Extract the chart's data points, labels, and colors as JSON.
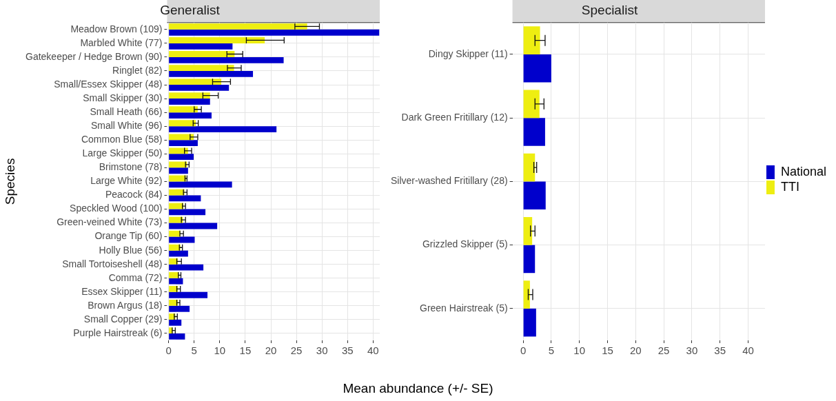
{
  "chart_data": [
    {
      "type": "bar",
      "orientation": "horizontal",
      "title": "Generalist",
      "xlabel": "Mean abundance (+/- SE)",
      "ylabel": "Species",
      "categories": [
        "Meadow Brown (109)",
        "Marbled White (77)",
        "Gatekeeper / Hedge Brown (90)",
        "Ringlet (82)",
        "Small/Essex Skipper (48)",
        "Small Skipper (30)",
        "Small Heath (66)",
        "Small White (96)",
        "Common Blue (58)",
        "Large Skipper (50)",
        "Brimstone (78)",
        "Large White (92)",
        "Peacock (84)",
        "Speckled Wood (100)",
        "Green-veined White (73)",
        "Orange Tip (60)",
        "Holly Blue (56)",
        "Small Tortoiseshell (48)",
        "Comma (72)",
        "Essex Skipper (11)",
        "Brown Argus (18)",
        "Small Copper (29)",
        "Purple Hairstreak (6)"
      ],
      "series": [
        {
          "color": "#0000cc",
          "values": [
            41.2,
            12.5,
            22.5,
            16.5,
            11.8,
            8.1,
            8.4,
            21.1,
            5.7,
            4.9,
            3.8,
            12.4,
            6.3,
            7.2,
            9.5,
            5.1,
            3.8,
            6.8,
            2.8,
            7.6,
            4.1,
            2.5,
            3.2
          ]
        },
        {
          "color": "#eeee11",
          "values": [
            27.1,
            18.8,
            12.9,
            12.8,
            10.3,
            8.1,
            5.7,
            5.3,
            4.9,
            3.8,
            3.6,
            3.4,
            3.1,
            2.9,
            2.8,
            2.3,
            2.3,
            1.8,
            2.0,
            1.8,
            1.8,
            1.3,
            0.8
          ],
          "errors": [
            [
              24.7,
              29.5
            ],
            [
              15.2,
              22.6
            ],
            [
              11.4,
              14.5
            ],
            [
              11.5,
              14.2
            ],
            [
              8.6,
              12.1
            ],
            [
              6.7,
              9.7
            ],
            [
              5.0,
              6.4
            ],
            [
              4.8,
              5.8
            ],
            [
              4.2,
              5.7
            ],
            [
              3.1,
              4.5
            ],
            [
              3.3,
              4.0
            ],
            [
              3.2,
              3.6
            ],
            [
              2.9,
              3.6
            ],
            [
              2.7,
              3.3
            ],
            [
              2.5,
              3.3
            ],
            [
              2.2,
              2.9
            ],
            [
              2.1,
              2.7
            ],
            [
              1.6,
              2.5
            ],
            [
              1.9,
              2.4
            ],
            [
              1.6,
              2.3
            ],
            [
              1.6,
              2.2
            ],
            [
              1.1,
              1.7
            ],
            [
              0.7,
              1.3
            ]
          ]
        }
      ],
      "xlim": [
        -0.3,
        41.3
      ],
      "xticks": [
        0,
        5,
        10,
        15,
        20,
        25,
        30,
        35,
        40
      ],
      "grid": true,
      "legend": false
    },
    {
      "type": "bar",
      "orientation": "horizontal",
      "title": "Specialist",
      "categories": [
        "Dingy Skipper (11)",
        "Dark Green Fritillary (12)",
        "Silver-washed Fritillary (28)",
        "Grizzled Skipper (5)",
        "Green Hairstreak (5)"
      ],
      "series": [
        {
          "name": "National",
          "color": "#0000cc",
          "values": [
            5.0,
            3.9,
            4.0,
            2.1,
            2.3
          ]
        },
        {
          "name": "TTI",
          "color": "#eeee11",
          "values": [
            3.0,
            2.9,
            2.1,
            1.6,
            1.2
          ],
          "errors": [
            [
              2.1,
              3.9
            ],
            [
              2.1,
              3.7
            ],
            [
              1.9,
              2.4
            ],
            [
              1.3,
              2.1
            ],
            [
              0.9,
              1.7
            ]
          ]
        }
      ],
      "xlim": [
        -1.9,
        43
      ],
      "xticks": [
        0,
        5,
        10,
        15,
        20,
        25,
        30,
        35,
        40
      ],
      "grid": true,
      "legend": "right"
    }
  ]
}
